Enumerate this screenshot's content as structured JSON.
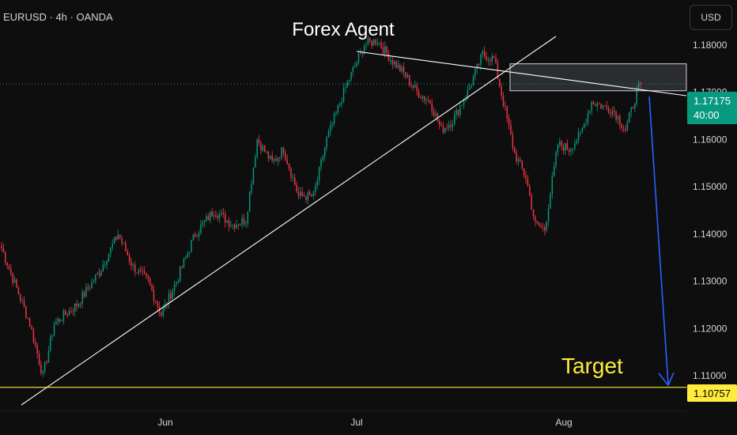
{
  "header": {
    "ticker": "EURUSD · 4h · OANDA",
    "currency": "USD"
  },
  "price_badge": {
    "price": "1.17175",
    "countdown": "40:00",
    "color": "#089981"
  },
  "target_badge": {
    "price": "1.10757",
    "color": "#ffeb3b"
  },
  "annotations": {
    "title": "Forex Agent",
    "target_label": "Target",
    "target_color": "#ffeb3b",
    "arrow_color": "#2962ff"
  },
  "colors": {
    "up": "#089981",
    "down": "#f23645",
    "background": "#0e0e0e",
    "trendline": "#ffffff"
  },
  "chart_data": {
    "type": "candlestick",
    "title": "",
    "xlabel": "",
    "ylabel": "",
    "y_axis_ticks": [
      "1.18000",
      "1.17000",
      "1.16000",
      "1.15000",
      "1.14000",
      "1.13000",
      "1.12000",
      "1.11000"
    ],
    "ylim": [
      1.1025,
      1.1895
    ],
    "x_axis_ticks": [
      "Jun",
      "Jul",
      "Aug"
    ],
    "grid": false,
    "anchors": [
      {
        "t": 0,
        "p": 1.137
      },
      {
        "t": 15,
        "p": 1.121
      },
      {
        "t": 22,
        "p": 1.11
      },
      {
        "t": 28,
        "p": 1.121
      },
      {
        "t": 40,
        "p": 1.125
      },
      {
        "t": 52,
        "p": 1.132
      },
      {
        "t": 62,
        "p": 1.14
      },
      {
        "t": 70,
        "p": 1.133
      },
      {
        "t": 78,
        "p": 1.13
      },
      {
        "t": 85,
        "p": 1.123
      },
      {
        "t": 93,
        "p": 1.13
      },
      {
        "t": 103,
        "p": 1.14
      },
      {
        "t": 113,
        "p": 1.145
      },
      {
        "t": 123,
        "p": 1.142
      },
      {
        "t": 130,
        "p": 1.143
      },
      {
        "t": 136,
        "p": 1.16
      },
      {
        "t": 144,
        "p": 1.155
      },
      {
        "t": 150,
        "p": 1.158
      },
      {
        "t": 158,
        "p": 1.148
      },
      {
        "t": 166,
        "p": 1.148
      },
      {
        "t": 173,
        "p": 1.16
      },
      {
        "t": 184,
        "p": 1.172
      },
      {
        "t": 193,
        "p": 1.18
      },
      {
        "t": 200,
        "p": 1.181
      },
      {
        "t": 207,
        "p": 1.177
      },
      {
        "t": 214,
        "p": 1.174
      },
      {
        "t": 221,
        "p": 1.17
      },
      {
        "t": 228,
        "p": 1.168
      },
      {
        "t": 234,
        "p": 1.162
      },
      {
        "t": 240,
        "p": 1.164
      },
      {
        "t": 248,
        "p": 1.17
      },
      {
        "t": 256,
        "p": 1.178
      },
      {
        "t": 262,
        "p": 1.177
      },
      {
        "t": 268,
        "p": 1.166
      },
      {
        "t": 273,
        "p": 1.157
      },
      {
        "t": 279,
        "p": 1.152
      },
      {
        "t": 284,
        "p": 1.142
      },
      {
        "t": 289,
        "p": 1.141
      },
      {
        "t": 296,
        "p": 1.159
      },
      {
        "t": 302,
        "p": 1.158
      },
      {
        "t": 308,
        "p": 1.161
      },
      {
        "t": 314,
        "p": 1.168
      },
      {
        "t": 320,
        "p": 1.167
      },
      {
        "t": 326,
        "p": 1.166
      },
      {
        "t": 332,
        "p": 1.162
      },
      {
        "t": 338,
        "p": 1.17
      },
      {
        "t": 340,
        "p": 1.1718
      }
    ],
    "candle_count": 341,
    "last_price": 1.17175,
    "target_level": 1.10757,
    "resistance_zone": [
      1.1703,
      1.176
    ]
  }
}
